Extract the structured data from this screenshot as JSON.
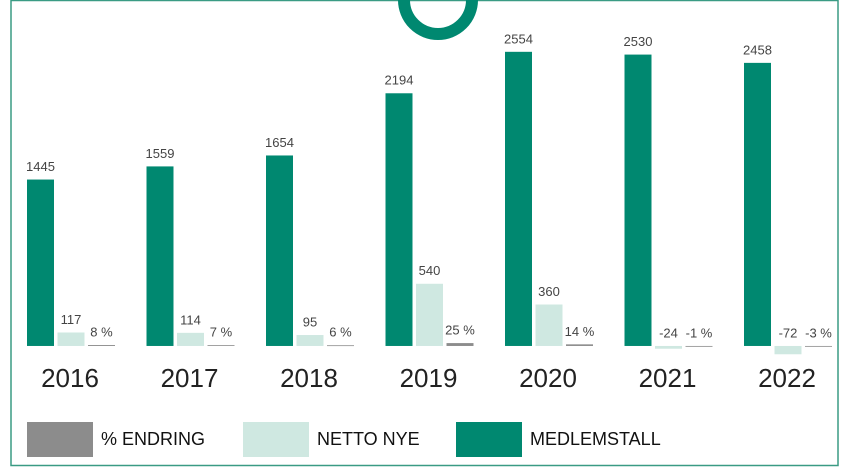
{
  "chart_data": {
    "type": "bar",
    "categories": [
      "2016",
      "2017",
      "2018",
      "2019",
      "2020",
      "2021",
      "2022"
    ],
    "series": [
      {
        "name": "% ENDRING",
        "color": "#8c8c8c",
        "values": [
          8,
          7,
          6,
          25,
          14,
          -1,
          -3
        ],
        "value_labels": [
          "8 %",
          "7 %",
          "6 %",
          "25 %",
          "14 %",
          "-1 %",
          "-3 %"
        ]
      },
      {
        "name": "NETTO NYE",
        "color": "#cfe8e1",
        "values": [
          117,
          114,
          95,
          540,
          360,
          -24,
          -72
        ]
      },
      {
        "name": "MEDLEMSTALL",
        "color": "#008870",
        "values": [
          1445,
          1559,
          1654,
          2194,
          2554,
          2530,
          2458
        ]
      }
    ],
    "ylim": [
      -200,
      2700
    ]
  }
}
